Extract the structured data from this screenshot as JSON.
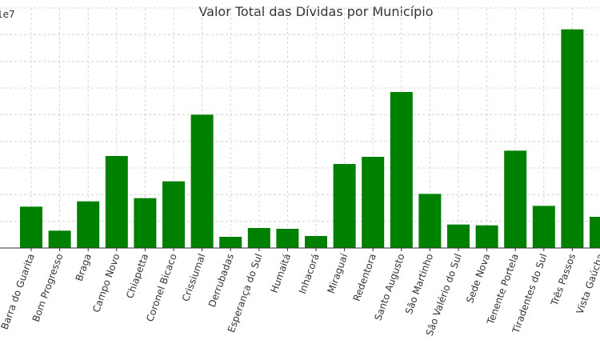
{
  "chart_data": {
    "type": "bar",
    "title": "Valor Total das Dívidas por Município",
    "y_offset_label": "1e7",
    "xlabel": "",
    "ylabel": "",
    "ylim": [
      0,
      9.0
    ],
    "grid": true,
    "bar_color": "#008000",
    "categories": [
      "Barra do Guarita",
      "Bom Progresso",
      "Braga",
      "Campo Novo",
      "Chiapetta",
      "Coronel Bicaco",
      "Crissiumal",
      "Derrubadas",
      "Esperança do Sul",
      "Humaitá",
      "Inhacorá",
      "Miraguaí",
      "Redentora",
      "Santo Augusto",
      "São Martinho",
      "São Valério do Sul",
      "Sede Nova",
      "Tenente Portela",
      "Tiradentes do Sul",
      "Três Passos",
      "Vista Gaúcha"
    ],
    "values": [
      1.55,
      0.65,
      1.75,
      3.45,
      1.87,
      2.5,
      5.0,
      0.42,
      0.75,
      0.72,
      0.45,
      3.15,
      3.42,
      5.85,
      2.03,
      0.88,
      0.85,
      3.65,
      1.58,
      8.2,
      1.17
    ]
  }
}
